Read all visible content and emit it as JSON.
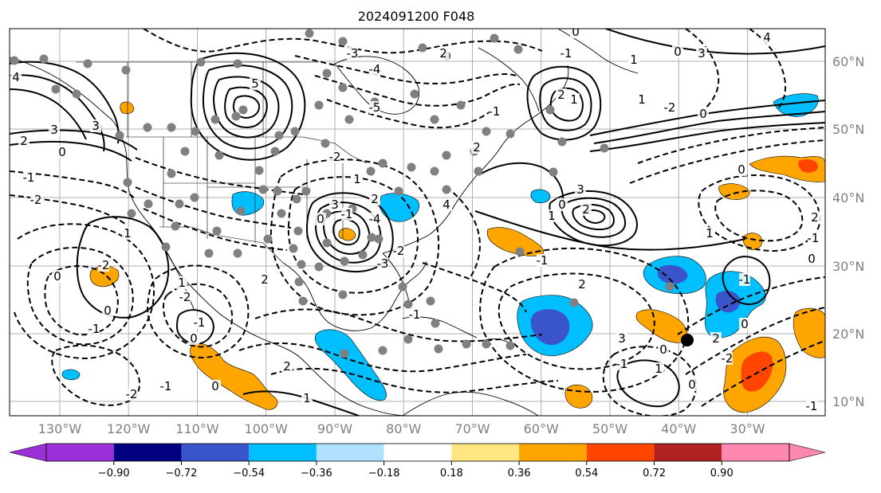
{
  "title": "2024091200 F048",
  "axes": {
    "lon_labels": [
      "130°W",
      "120°W",
      "110°W",
      "100°W",
      "90°W",
      "80°W",
      "70°W",
      "60°W",
      "50°W",
      "40°W",
      "30°W"
    ],
    "lat_labels": [
      "60°N",
      "50°N",
      "40°N",
      "30°N",
      "20°N",
      "10°N"
    ]
  },
  "colorbar": {
    "ticks": [
      "−0.90",
      "−0.72",
      "−0.54",
      "−0.36",
      "−0.18",
      "0.18",
      "0.36",
      "0.54",
      "0.72",
      "0.90"
    ],
    "colors": {
      "under": "#9b30d9",
      "bins": [
        "#9b30d9",
        "#000080",
        "#3a55cc",
        "#00bfff",
        "#b0e2ff",
        "#ffffff",
        "#ffe680",
        "#ffa500",
        "#ff4500",
        "#b22222",
        "#ff88b0"
      ],
      "over": "#ff88b0"
    }
  },
  "shading_colors": {
    "light_blue": "#00bfff",
    "mid_blue": "#3a55cc",
    "orange": "#ffa500",
    "red": "#ff4500"
  },
  "contour_labels": [
    "4",
    "2",
    "3",
    "0",
    "-1",
    "-2",
    "3",
    "5",
    "-5",
    "-4",
    "-3",
    "2",
    "-2",
    "1",
    "-1",
    "0",
    "2",
    "3",
    "1",
    "-2",
    "-1",
    "0",
    "0",
    "2",
    "1",
    "-1",
    "-2",
    "0",
    "-1",
    "2",
    "-2",
    "0",
    "1",
    "-1",
    "-2",
    "-3",
    "4",
    "-4",
    "3",
    "0",
    "1",
    "2",
    "-1",
    "2",
    "3",
    "0",
    "0",
    "2",
    "1",
    "-1",
    "-2",
    "0",
    "-1",
    "0",
    "-1",
    "2",
    "1",
    "0",
    "-2",
    "0",
    "1",
    "-1",
    "4",
    "3",
    "1",
    "0",
    "-1",
    "0",
    "1",
    "2",
    "2",
    "-1"
  ],
  "marker": {
    "name": "storm-center",
    "color": "#000000"
  }
}
